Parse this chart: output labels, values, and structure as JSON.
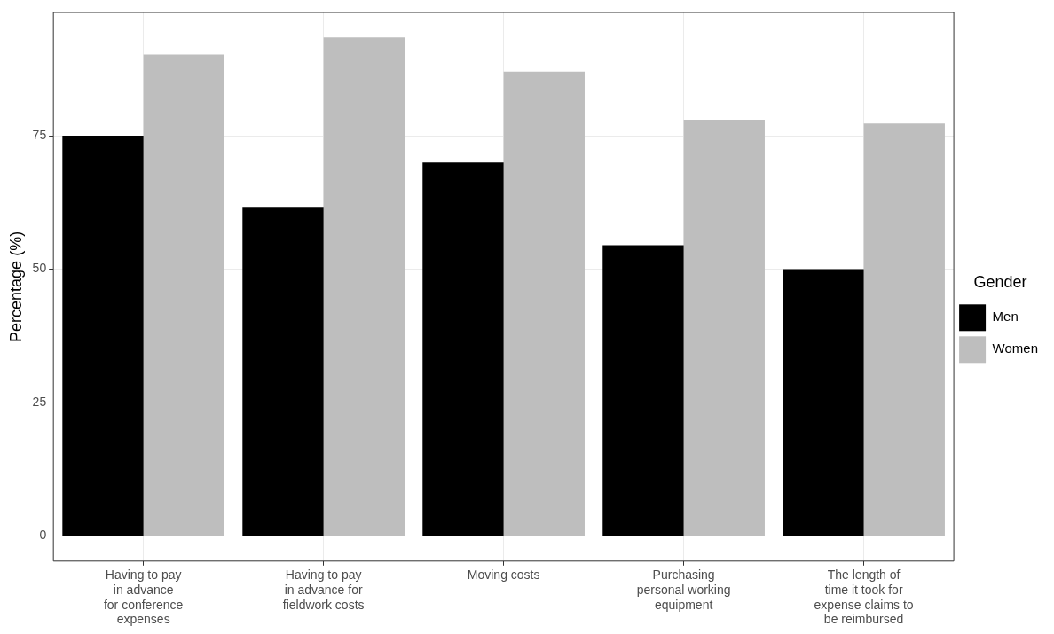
{
  "chart_data": {
    "type": "bar",
    "ylabel": "Percentage (%)",
    "legend_title": "Gender",
    "legend": "right",
    "categories": [
      "Having to pay\nin advance\nfor conference\nexpenses",
      "Having to pay\nin advance for\nfieldwork costs",
      "Moving costs",
      "Purchasing\npersonal working\nequipment",
      "The length of\ntime it took for\nexpense claims to\nbe reimbursed"
    ],
    "series": [
      {
        "name": "Men",
        "color": "#000000",
        "values": [
          75,
          61.5,
          70,
          54.5,
          50
        ]
      },
      {
        "name": "Women",
        "color": "#bebebe",
        "values": [
          90.2,
          93.4,
          87,
          78,
          77.3
        ]
      }
    ],
    "ylim": [
      -4.7,
      98.1
    ],
    "yticks": [
      0,
      25,
      50,
      75
    ],
    "grid": true
  }
}
